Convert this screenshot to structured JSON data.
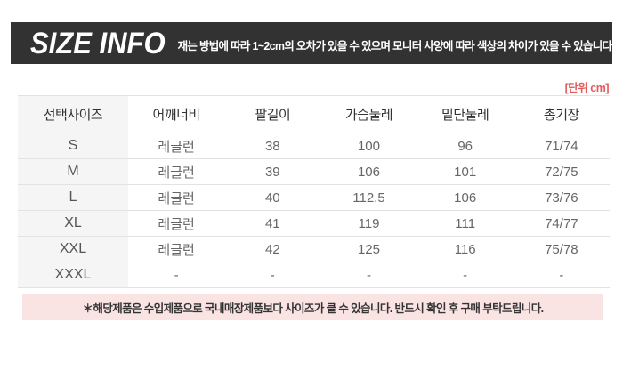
{
  "header": {
    "title": "SIZE INFO",
    "subtitle": "재는 방법에 따라 1~2cm의 오차가 있을 수 있으며 모니터 사양에 따라 색상의 차이가 있을 수 있습니다.",
    "bg_color": "#323232",
    "text_color": "#ffffff"
  },
  "unit_label": "[단위 cm]",
  "unit_label_color": "#e25c5c",
  "table": {
    "columns": [
      "선택사이즈",
      "어깨너비",
      "팔길이",
      "가슴둘레",
      "밑단둘레",
      "총기장"
    ],
    "rows": [
      [
        "S",
        "레글런",
        "38",
        "100",
        "96",
        "71/74"
      ],
      [
        "M",
        "레글런",
        "39",
        "106",
        "101",
        "72/75"
      ],
      [
        "L",
        "레글런",
        "40",
        "112.5",
        "106",
        "73/76"
      ],
      [
        "XL",
        "레글런",
        "41",
        "119",
        "111",
        "74/77"
      ],
      [
        "XXL",
        "레글런",
        "42",
        "125",
        "116",
        "75/78"
      ],
      [
        "XXXL",
        "-",
        "-",
        "-",
        "-",
        "-"
      ]
    ],
    "first_column_bg": "#f5f5f5",
    "border_color": "#e2e2e2"
  },
  "notice": {
    "text": "＊해당제품은 수입제품으로 국내매장제품보다 사이즈가 클 수 있습니다. 반드시 확인 후 구매 부탁드립니다.",
    "bg_color": "#fae3e3"
  }
}
